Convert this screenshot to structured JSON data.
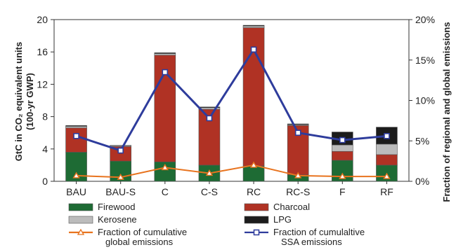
{
  "chart_data": {
    "type": "bar",
    "stacked": true,
    "categories": [
      "BAU",
      "BAU-S",
      "C",
      "C-S",
      "RC",
      "RC-S",
      "F",
      "RF"
    ],
    "ylabel_lines": [
      "GtC in CO₂ equivalent units",
      "(100-yr GWP)"
    ],
    "y2label": "Fraction of regional and global emissions",
    "ylim": [
      0,
      20
    ],
    "yticks": [
      "0",
      "4",
      "8",
      "12",
      "16",
      "20"
    ],
    "y2lim": [
      0,
      20
    ],
    "y2ticks": [
      "0%",
      "5%",
      "10%",
      "15%",
      "20%"
    ],
    "grid": false,
    "legend_position": "bottom",
    "series": [
      {
        "name": "Firewood",
        "color": "#1e6b34",
        "values": [
          3.6,
          2.5,
          2.4,
          2.0,
          1.9,
          0.8,
          2.6,
          2.0
        ]
      },
      {
        "name": "Charcoal",
        "color": "#b03224",
        "values": [
          3.0,
          1.8,
          13.2,
          6.9,
          17.1,
          6.1,
          1.1,
          1.3
        ]
      },
      {
        "name": "Kerosene",
        "color": "#bcbcbc",
        "values": [
          0.2,
          0.1,
          0.2,
          0.2,
          0.2,
          0.1,
          0.8,
          1.3
        ]
      },
      {
        "name": "LPG",
        "color": "#1c1c1c",
        "values": [
          0.1,
          0.05,
          0.1,
          0.1,
          0.1,
          0.1,
          1.6,
          2.1
        ]
      }
    ],
    "lines": [
      {
        "name_lines": [
          "Fraction of cumulative",
          "global emissions"
        ],
        "color": "#e8731e",
        "marker": "triangle",
        "values_percent": [
          0.7,
          0.5,
          1.7,
          1.0,
          2.0,
          0.7,
          0.6,
          0.6
        ]
      },
      {
        "name_lines": [
          "Fraction of cumulaltive",
          "SSA emissions"
        ],
        "color": "#2e3c9c",
        "marker": "square",
        "values_percent": [
          5.6,
          3.8,
          13.5,
          7.8,
          16.3,
          6.0,
          5.1,
          5.6
        ]
      }
    ]
  }
}
